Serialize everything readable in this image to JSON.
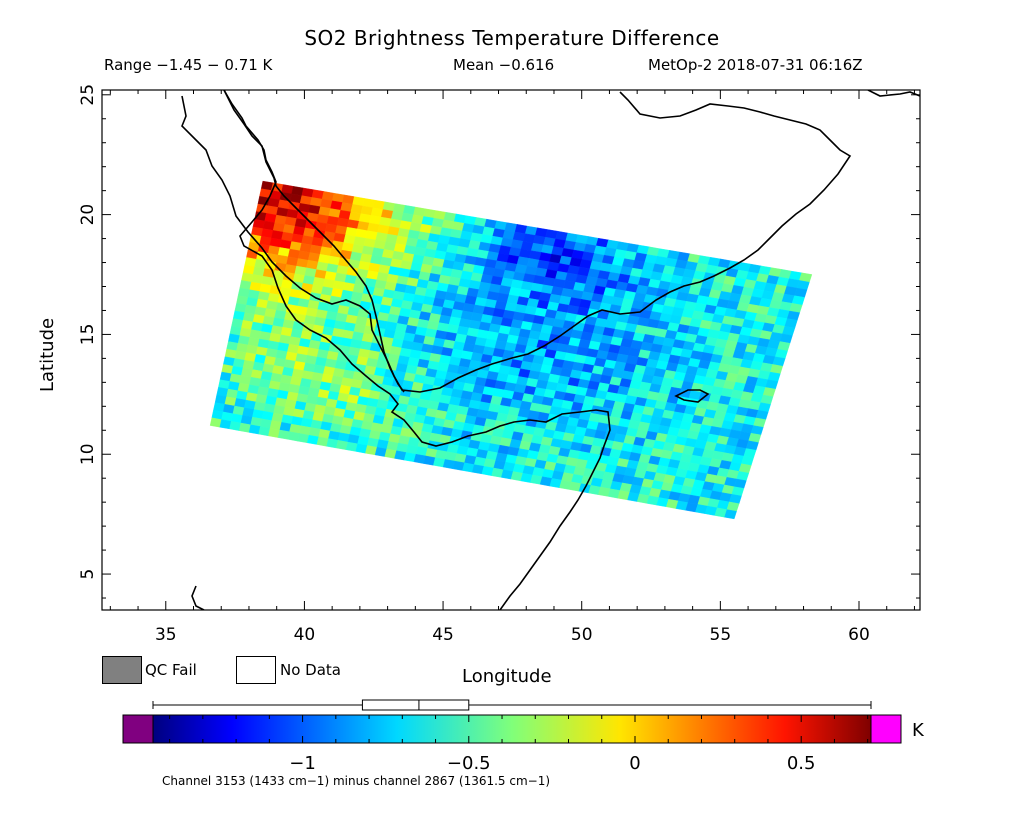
{
  "header": {
    "title": "SO2 Brightness Temperature Difference",
    "range": "Range −1.45 − 0.71 K",
    "mean": "Mean −0.616",
    "satellite_time": "MetOp-2 2018-07-31 06:16Z"
  },
  "map": {
    "xlabel": "Longitude",
    "ylabel": "Latitude",
    "xlim": [
      32.7,
      62.2
    ],
    "ylim": [
      3.5,
      25.2
    ],
    "xticks": [
      "35",
      "40",
      "45",
      "50",
      "55",
      "60"
    ],
    "xtick_values": [
      35,
      40,
      45,
      50,
      55,
      60
    ],
    "yticks": [
      "5",
      "10",
      "15",
      "20",
      "25"
    ],
    "ytick_values": [
      5,
      10,
      15,
      20,
      25
    ],
    "swath_corners_lonlat": [
      [
        38.5,
        21.4
      ],
      [
        58.3,
        17.5
      ],
      [
        55.5,
        7.3
      ],
      [
        36.6,
        11.2
      ]
    ]
  },
  "legend": {
    "qc_fail": "QC Fail",
    "no_data": "No Data",
    "qc_fail_color": "#808080",
    "no_data_color": "#ffffff"
  },
  "colorbar": {
    "unit": "K",
    "range": [
      -1.45,
      0.71
    ],
    "ticks": [
      "−1",
      "−0.5",
      "0",
      "0.5"
    ],
    "tick_values": [
      -1,
      -0.5,
      0,
      0.5
    ],
    "under_color": "#800080",
    "over_color": "#ff00ff",
    "boxplot": {
      "min": -1.45,
      "q1": -0.82,
      "median": -0.65,
      "q3": -0.5,
      "max": 0.71
    },
    "caption": "Channel 3153 (1433 cm−1) minus channel 2867 (1361.5 cm−1)"
  }
}
